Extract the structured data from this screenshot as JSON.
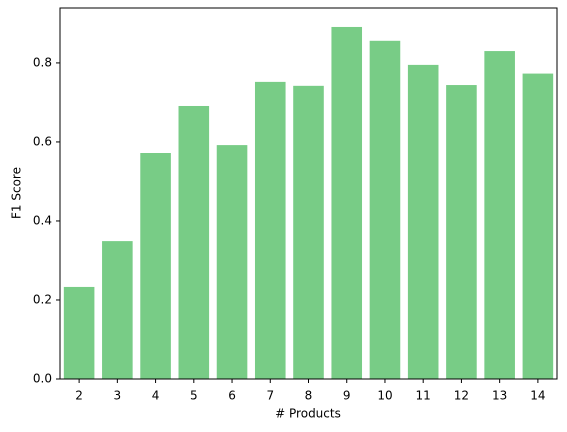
{
  "chart_data": {
    "type": "bar",
    "xlabel": "# Products",
    "ylabel": "F1 Score",
    "categories": [
      "2",
      "3",
      "4",
      "5",
      "6",
      "7",
      "8",
      "9",
      "10",
      "11",
      "12",
      "13",
      "14"
    ],
    "values": [
      0.233,
      0.349,
      0.572,
      0.691,
      0.592,
      0.752,
      0.742,
      0.891,
      0.856,
      0.795,
      0.744,
      0.83,
      0.773
    ],
    "color": "#78cc86",
    "ylim": [
      0,
      0.939
    ],
    "yticks": [
      {
        "value": 0,
        "label": "0.0"
      },
      0.2,
      0.4,
      0.6,
      0.8
    ],
    "grid": false
  }
}
